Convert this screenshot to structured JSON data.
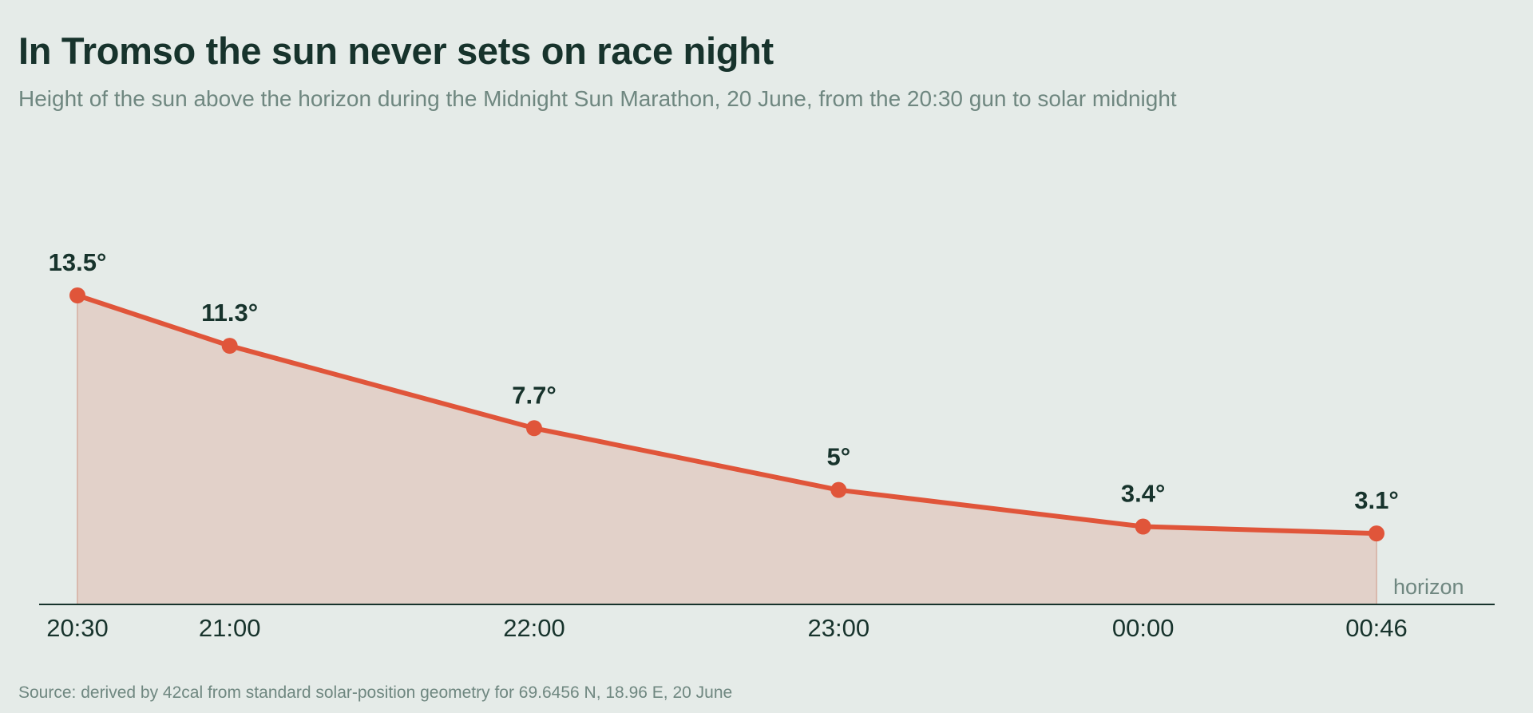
{
  "header": {
    "title": "In Tromso the sun never sets on race night",
    "subtitle": "Height of the sun above the horizon during the Midnight Sun Marathon, 20 June, from the 20:30 gun to solar midnight"
  },
  "footer": {
    "source": "Source: derived by 42cal from standard solar-position geometry for 69.6456 N, 18.96 E, 20 June"
  },
  "chart_data": {
    "type": "area",
    "title": "In Tromso the sun never sets on race night",
    "subtitle": "Height of the sun above the horizon during the Midnight Sun Marathon, 20 June, from the 20:30 gun to solar midnight",
    "x": [
      "20:30",
      "21:00",
      "22:00",
      "23:00",
      "00:00",
      "00:46"
    ],
    "x_minutes_after_2030": [
      0,
      30,
      90,
      150,
      210,
      256
    ],
    "series": [
      {
        "values": [
          13.5,
          11.3,
          7.7,
          5,
          3.4,
          3.1
        ]
      }
    ],
    "value_labels": [
      "13.5°",
      "11.3°",
      "7.7°",
      "5°",
      "3.4°",
      "3.1°"
    ],
    "ylim": [
      0,
      13.5
    ],
    "annotation": "horizon",
    "grid": false,
    "colors": {
      "line": "#e0553a",
      "fill": "#e2d1c9",
      "axis": "#17332c",
      "text": "#17332c",
      "muted": "#6f8780"
    }
  }
}
